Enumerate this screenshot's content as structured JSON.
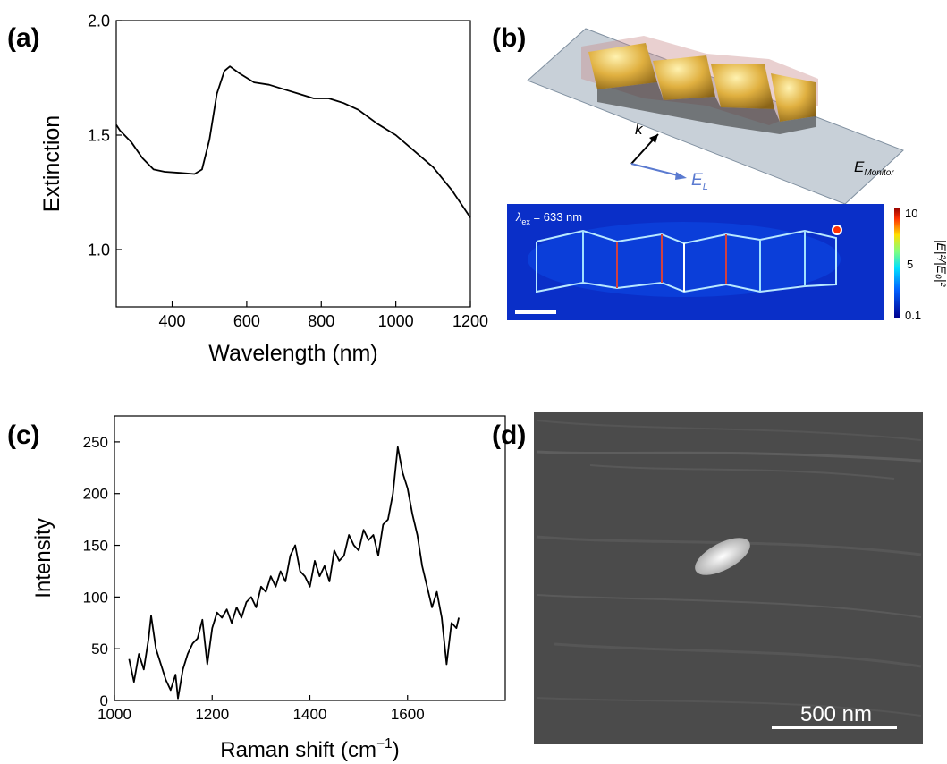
{
  "panel_labels": [
    "(a)",
    "(b)",
    "(c)",
    "(d)"
  ],
  "chart_data": [
    {
      "type": "line",
      "x_label": "Wavelength (nm)",
      "y_label": "Extinction",
      "x": [
        250,
        260,
        290,
        320,
        350,
        380,
        420,
        460,
        480,
        500,
        520,
        540,
        555,
        580,
        620,
        660,
        700,
        740,
        780,
        820,
        860,
        900,
        950,
        1000,
        1050,
        1100,
        1150,
        1200
      ],
      "values": [
        1.545,
        1.52,
        1.47,
        1.4,
        1.35,
        1.34,
        1.335,
        1.33,
        1.35,
        1.48,
        1.68,
        1.78,
        1.8,
        1.77,
        1.73,
        1.72,
        1.7,
        1.68,
        1.66,
        1.66,
        1.64,
        1.61,
        1.55,
        1.5,
        1.43,
        1.36,
        1.26,
        1.14
      ],
      "color": "#000000",
      "xlim": [
        250,
        1200
      ],
      "ylim": [
        0.75,
        2.0
      ],
      "xticks": [
        400,
        600,
        800,
        1000,
        1200
      ],
      "yticks": [
        {
          "value": 1,
          "label": "1.0"
        },
        {
          "value": 1.5,
          "label": "1.5"
        },
        {
          "value": 2,
          "label": "2.0"
        }
      ]
    },
    {
      "type": "line",
      "x_label": [
        "Raman shift (cm",
        "−1",
        ")"
      ],
      "y_label": "Intensity",
      "x": [
        1030,
        1040,
        1050,
        1060,
        1070,
        1075,
        1085,
        1095,
        1105,
        1115,
        1125,
        1130,
        1140,
        1150,
        1160,
        1170,
        1180,
        1190,
        1200,
        1210,
        1220,
        1230,
        1240,
        1250,
        1260,
        1270,
        1280,
        1290,
        1300,
        1310,
        1320,
        1330,
        1340,
        1350,
        1360,
        1370,
        1380,
        1390,
        1400,
        1410,
        1420,
        1430,
        1440,
        1450,
        1460,
        1470,
        1480,
        1490,
        1500,
        1510,
        1520,
        1530,
        1540,
        1550,
        1560,
        1570,
        1580,
        1590,
        1600,
        1610,
        1620,
        1630,
        1640,
        1650,
        1660,
        1670,
        1680,
        1690,
        1700,
        1705
      ],
      "values": [
        40,
        18,
        45,
        30,
        60,
        82,
        50,
        35,
        20,
        10,
        25,
        2,
        30,
        45,
        55,
        60,
        78,
        35,
        70,
        85,
        80,
        88,
        75,
        90,
        80,
        95,
        100,
        90,
        110,
        105,
        120,
        110,
        125,
        115,
        140,
        150,
        125,
        120,
        110,
        135,
        120,
        130,
        115,
        145,
        135,
        140,
        160,
        150,
        145,
        165,
        155,
        160,
        140,
        170,
        175,
        200,
        245,
        220,
        205,
        180,
        160,
        130,
        110,
        90,
        105,
        80,
        35,
        75,
        70,
        80
      ],
      "color": "#000000",
      "xlim": [
        1000,
        1800
      ],
      "ylim": [
        0,
        275
      ],
      "xticks": [
        1000,
        1200,
        1400,
        1600
      ],
      "yticks": [
        0,
        50,
        100,
        150,
        200,
        250
      ]
    }
  ],
  "simulation": {
    "wavevector": "k",
    "polarization": [
      "E",
      "L"
    ],
    "monitor": [
      "E",
      "Monitor"
    ],
    "excitation": [
      "λ",
      "ex",
      " = 633 nm"
    ],
    "colorbar_ticks": [
      "10",
      "5",
      "0.1"
    ],
    "colorbar_label": "|E|²/|E₀|²"
  },
  "sem": {
    "scale_bar": "500 nm"
  }
}
